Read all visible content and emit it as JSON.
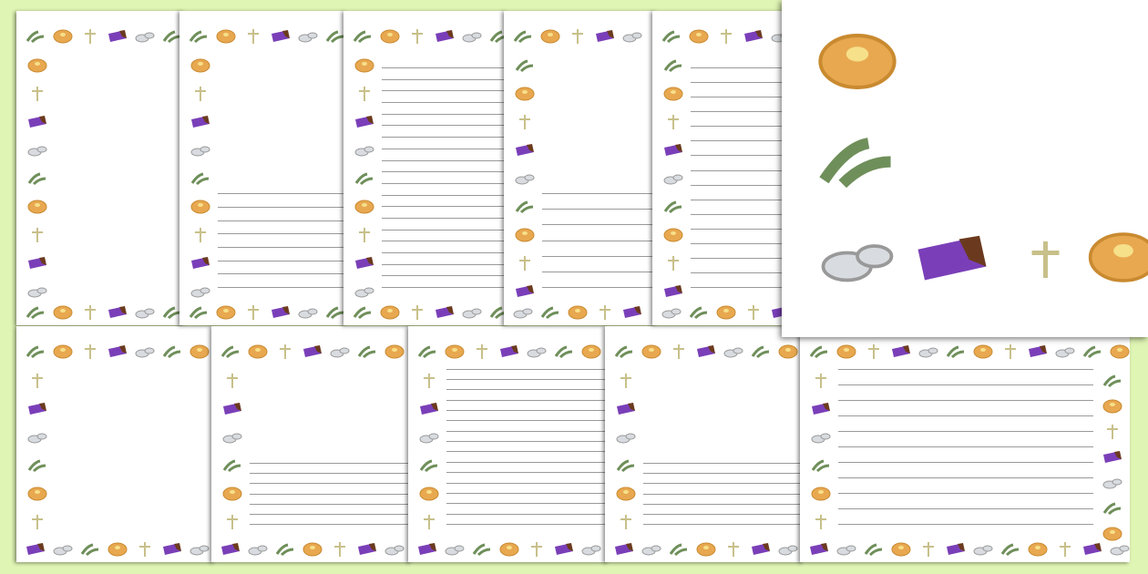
{
  "colors": {
    "background": "#dff5b4",
    "page": "#ffffff",
    "line": "#9a9a9a",
    "pancake": "#e8a850",
    "palm": "#6f8f5a",
    "cross": "#c8c08a",
    "chocolate": "#7a3fb8",
    "coin": "#d8dce0"
  },
  "border_sequence": [
    "palm-icon",
    "pancake-icon",
    "cross-icon",
    "chocolate-icon",
    "coins-icon"
  ],
  "top_row": [
    {
      "lined": false
    },
    {
      "lined": true,
      "lines": 8
    },
    {
      "lined": true,
      "lines": 20
    },
    {
      "lined": true,
      "lines": 7
    },
    {
      "lined": true,
      "lines": 16
    }
  ],
  "bottom_row": [
    {
      "lined": false
    },
    {
      "lined": true,
      "lines": 7
    },
    {
      "lined": true,
      "lines": 16
    },
    {
      "lined": true,
      "lines": 7
    },
    {
      "lined": true,
      "lines": 11
    }
  ],
  "zoom_panel": {
    "icons": [
      "pancake-icon",
      "palm-icon",
      "coins-icon",
      "chocolate-icon",
      "cross-icon",
      "pancake-icon"
    ]
  }
}
